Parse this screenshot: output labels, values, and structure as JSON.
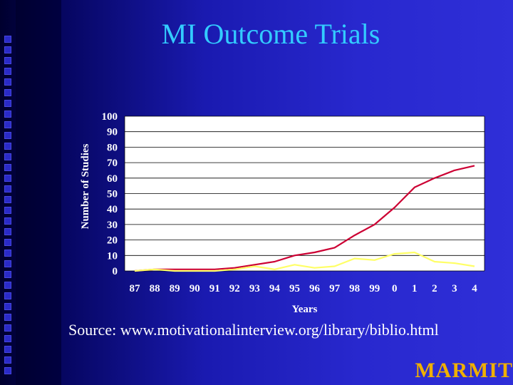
{
  "slide": {
    "title": "MI Outcome Trials",
    "source": "Source:  www.motivationalinterview.org/library/biblio.html",
    "logo": "MARMIT"
  },
  "colors": {
    "background": "#2828ce",
    "title": "#33ccff",
    "series_red": "#cc0033",
    "series_yellow": "#ffff66",
    "plot_bg": "#ffffff",
    "logo": "#f0b000"
  },
  "chart_data": {
    "type": "line",
    "title": "",
    "xlabel": "Years",
    "ylabel": "Number of Studies",
    "ylim": [
      0,
      100
    ],
    "yticks": [
      0,
      10,
      20,
      30,
      40,
      50,
      60,
      70,
      80,
      90,
      100
    ],
    "grid": true,
    "categories": [
      "87",
      "88",
      "89",
      "90",
      "91",
      "92",
      "93",
      "94",
      "95",
      "96",
      "97",
      "98",
      "99",
      "0",
      "1",
      "2",
      "3",
      "4"
    ],
    "series": [
      {
        "color": "#cc0033",
        "values": [
          0,
          1,
          1,
          1,
          1,
          2,
          4,
          6,
          10,
          12,
          15,
          23,
          30,
          41,
          54,
          60,
          65,
          68
        ]
      },
      {
        "color": "#ffff66",
        "values": [
          0,
          1,
          0,
          0,
          0,
          1,
          3,
          1,
          4,
          2,
          3,
          8,
          7,
          11,
          12,
          6,
          5,
          3
        ]
      }
    ]
  }
}
